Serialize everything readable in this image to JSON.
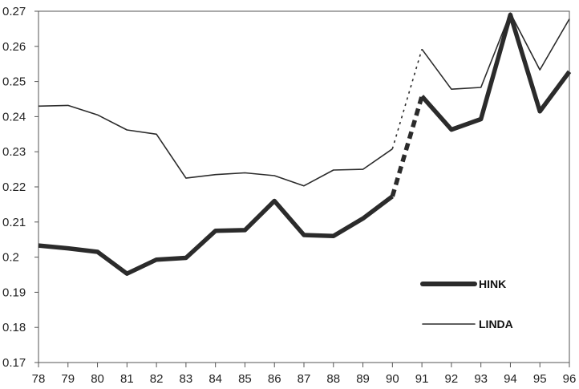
{
  "chart_data": {
    "type": "line",
    "title": "",
    "xlabel": "",
    "ylabel": "",
    "x": [
      "78",
      "79",
      "80",
      "81",
      "82",
      "83",
      "84",
      "85",
      "86",
      "87",
      "88",
      "89",
      "90",
      "91",
      "92",
      "93",
      "94",
      "95",
      "96"
    ],
    "ylim": [
      0.17,
      0.27
    ],
    "y_ticks": [
      "0.17",
      "0.18",
      "0.19",
      "0.2",
      "0.21",
      "0.22",
      "0.23",
      "0.24",
      "0.25",
      "0.26",
      "0.27"
    ],
    "grid": false,
    "legend_position": "bottom-right",
    "series": [
      {
        "name": "HINK",
        "color": "#2b2b2b",
        "style": "thick",
        "values": [
          0.2033,
          0.2025,
          0.2015,
          0.1953,
          0.1993,
          0.1998,
          0.2075,
          0.2077,
          0.216,
          0.2063,
          0.206,
          0.211,
          0.2173,
          0.2458,
          0.2363,
          0.2393,
          0.269,
          0.2415,
          0.2528
        ],
        "gap_dashed_between": [
          "90",
          "91"
        ]
      },
      {
        "name": "LINDA",
        "color": "#2b2b2b",
        "style": "thin",
        "values": [
          0.243,
          0.2432,
          0.2405,
          0.2362,
          0.235,
          0.2225,
          0.2235,
          0.224,
          0.2232,
          0.2203,
          0.2248,
          0.225,
          0.2308,
          0.2592,
          0.2478,
          0.2483,
          0.2695,
          0.2533,
          0.2678
        ],
        "gap_dashed_between": [
          "90",
          "91"
        ]
      }
    ]
  }
}
